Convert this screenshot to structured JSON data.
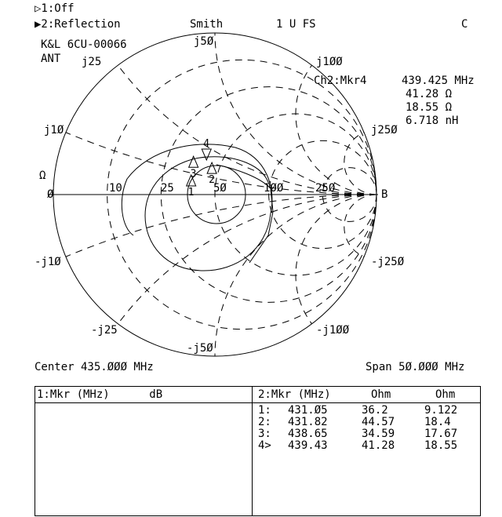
{
  "header": {
    "trace1": "▷1:Off",
    "trace2": "▶2:Reflection",
    "format": "Smith",
    "scale": "1 U FS",
    "cal_flag": "C",
    "title_line1": "K&L 6CU-00066",
    "title_line2": "ANT"
  },
  "marker_readout": {
    "label": "Ch2:Mkr4",
    "frequency": "439.425 MHz",
    "resistance": "41.28 Ω",
    "reactance": "18.55 Ω",
    "inductance": "6.718 nH"
  },
  "smith_labels": {
    "zero": "Ø",
    "ohm": "Ω",
    "r10": "10",
    "r25": "25",
    "r50": "5Ø",
    "r100": "1ØØ",
    "r250": "25Ø",
    "inf": "B",
    "jp10": "j1Ø",
    "jp25": "j25",
    "jp50": "j5Ø",
    "jp100": "j1ØØ",
    "jp250": "j25Ø",
    "jn10": "-j1Ø",
    "jn25": "-j25",
    "jn50": "-j5Ø",
    "jn100": "-j1ØØ",
    "jn250": "-j25Ø"
  },
  "sweep": {
    "center": "Center 435.ØØØ MHz",
    "span": "Span 5Ø.ØØØ MHz"
  },
  "table": {
    "left_header": "1:Mkr (MHz)      dB",
    "right_header": {
      "col1": "2:Mkr (MHz)",
      "col2": "Ohm",
      "col3": "Ohm"
    },
    "rows": [
      {
        "id": "1:",
        "freq": "431.Ø5",
        "r": "36.2",
        "x": "9.122"
      },
      {
        "id": "2:",
        "freq": "431.82",
        "r": "44.57",
        "x": "18.4"
      },
      {
        "id": "3:",
        "freq": "438.65",
        "r": "34.59",
        "x": "17.67"
      },
      {
        "id": "4>",
        "freq": "439.43",
        "r": "41.28",
        "x": "18.55"
      }
    ]
  },
  "chart_data": {
    "type": "smith",
    "z0": 50,
    "markers": [
      {
        "label": "1",
        "freq_mhz": 431.05,
        "r_ohm": 36.2,
        "x_ohm": 9.122
      },
      {
        "label": "2",
        "freq_mhz": 431.82,
        "r_ohm": 44.57,
        "x_ohm": 18.4
      },
      {
        "label": "3",
        "freq_mhz": 438.65,
        "r_ohm": 34.59,
        "x_ohm": 17.67
      },
      {
        "label": "4",
        "freq_mhz": 439.43,
        "r_ohm": 41.28,
        "x_ohm": 18.55
      }
    ],
    "grid_resistance_ohm": [
      10,
      25,
      50,
      100,
      250
    ],
    "grid_reactance_ohm": [
      10,
      25,
      50,
      100,
      250
    ]
  }
}
